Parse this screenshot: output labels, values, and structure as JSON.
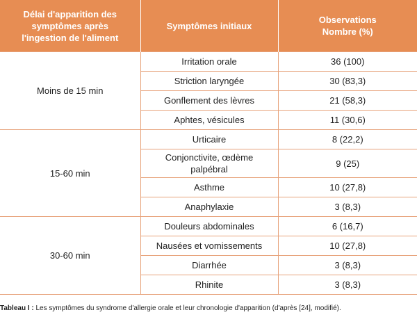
{
  "header": {
    "col1": [
      "Délai d'apparition des",
      "symptômes après",
      "l'ingestion de l'aliment"
    ],
    "col2": "Symptômes initiaux",
    "col3": [
      "Observations",
      "Nombre (%)"
    ]
  },
  "groups": [
    {
      "delay": "Moins de 15 min",
      "rows": [
        {
          "symptom": "Irritation orale",
          "obs": "36 (100)"
        },
        {
          "symptom": "Striction laryngée",
          "obs": "30 (83,3)"
        },
        {
          "symptom": "Gonflement des lèvres",
          "obs": "21 (58,3)"
        },
        {
          "symptom": "Aphtes, vésicules",
          "obs": "11 (30,6)"
        }
      ]
    },
    {
      "delay": "15-60 min",
      "rows": [
        {
          "symptom": "Urticaire",
          "obs": "8 (22,2)"
        },
        {
          "symptom_lines": [
            "Conjonctivite, œdème",
            "palpébral"
          ],
          "obs": "9 (25)"
        },
        {
          "symptom": "Asthme",
          "obs": "10 (27,8)"
        },
        {
          "symptom": "Anaphylaxie",
          "obs": "3 (8,3)"
        }
      ]
    },
    {
      "delay": "30-60 min",
      "rows": [
        {
          "symptom": "Douleurs abdominales",
          "obs": "6 (16,7)"
        },
        {
          "symptom": "Nausées et vomissements",
          "obs": "10 (27,8)"
        },
        {
          "symptom": "Diarrhée",
          "obs": "3 (8,3)"
        },
        {
          "symptom": "Rhinite",
          "obs": "3 (8,3)"
        }
      ]
    }
  ],
  "caption": {
    "label": "Tableau I :",
    "text": " Les symptômes du syndrome d'allergie orale et leur chronologie d'apparition (d'après [24], modifié)."
  },
  "colors": {
    "header_bg": "#e78d53",
    "border": "#e7a27a",
    "header_text": "#ffffff"
  }
}
